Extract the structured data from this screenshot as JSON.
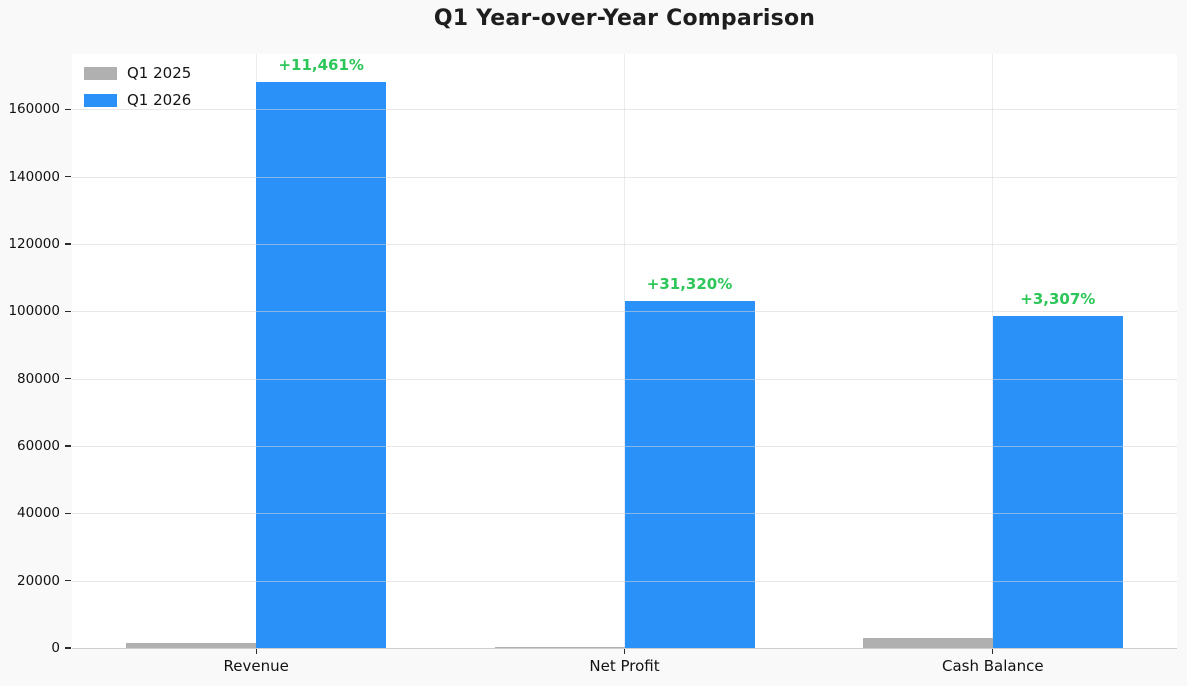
{
  "chart_data": {
    "type": "bar",
    "title": "Q1 Year-over-Year Comparison",
    "categories": [
      "Revenue",
      "Net Profit",
      "Cash Balance"
    ],
    "series": [
      {
        "name": "Q1 2025",
        "color": "#b0b0b0",
        "values": [
          1450,
          330,
          2890
        ]
      },
      {
        "name": "Q1 2026",
        "color": "#2a91f8",
        "values": [
          168000,
          103200,
          98500
        ]
      }
    ],
    "growth_labels": [
      "+11,461%",
      "+31,320%",
      "+3,307%"
    ],
    "growth_color": "#2dc658",
    "yticks": [
      0,
      20000,
      40000,
      60000,
      80000,
      100000,
      120000,
      140000,
      160000
    ],
    "ylim": [
      0,
      176400
    ],
    "xlabel": "",
    "ylabel": "",
    "grid": true,
    "legend_position": "upper-left",
    "background_color": "#f9f9fa",
    "plot_background_color": "#ffffff",
    "grid_color": "#ececee"
  }
}
